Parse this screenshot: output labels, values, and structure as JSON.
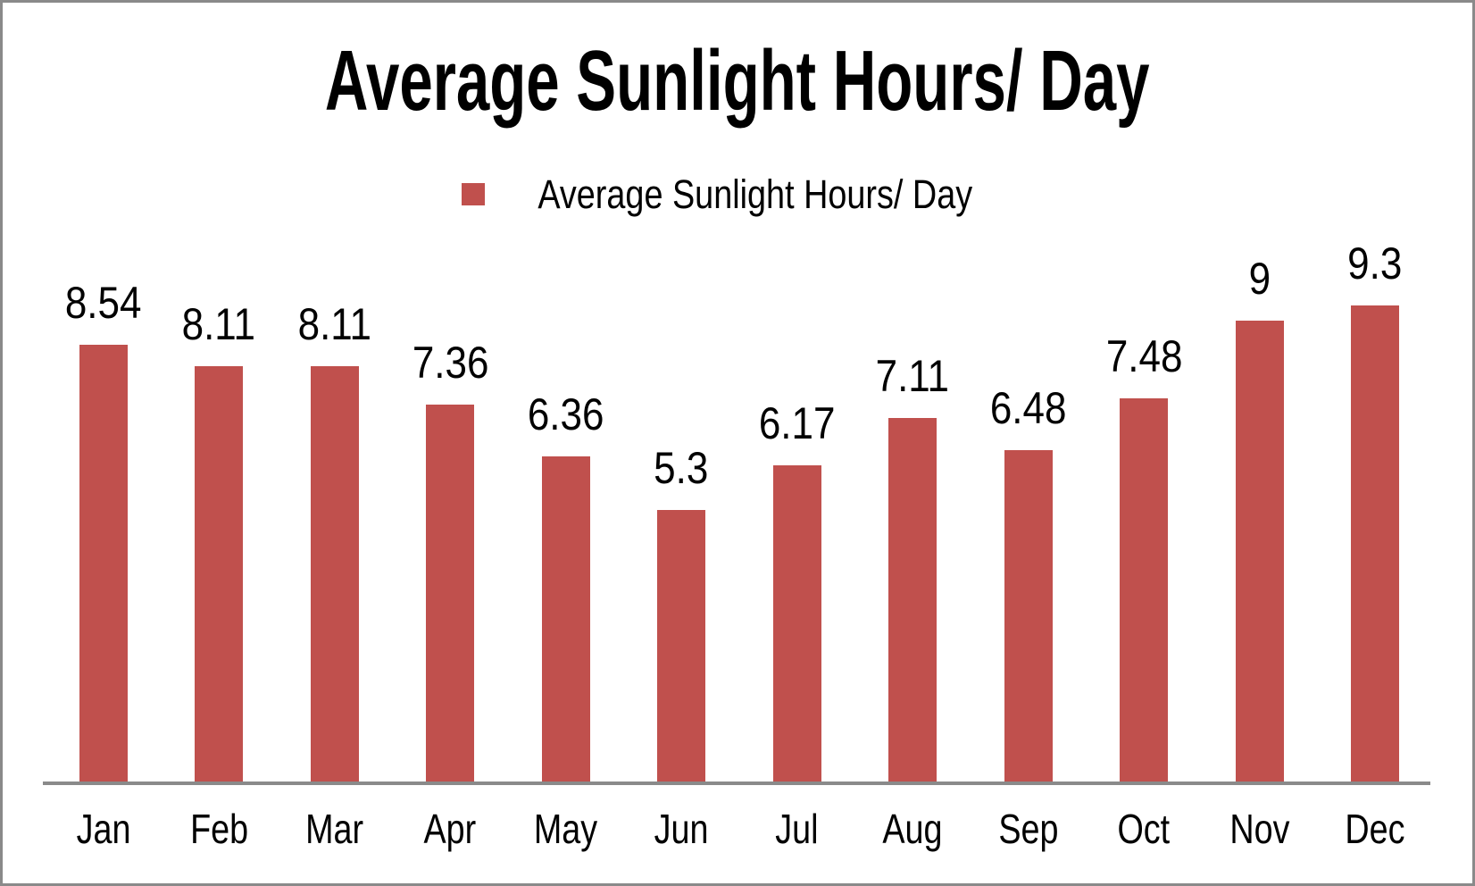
{
  "window": {
    "background": "#ffffff",
    "frame_border_color": "#8a8a8a"
  },
  "title": "Average Sunlight Hours/ Day",
  "legend": {
    "label": "Average Sunlight Hours/ Day",
    "swatch_icon": "red-square-icon"
  },
  "chart_data": {
    "type": "bar",
    "title": "Average Sunlight Hours/ Day",
    "categories": [
      "Jan",
      "Feb",
      "Mar",
      "Apr",
      "May",
      "Jun",
      "Jul",
      "Aug",
      "Sep",
      "Oct",
      "Nov",
      "Dec"
    ],
    "values": [
      8.54,
      8.11,
      8.11,
      7.36,
      6.36,
      5.3,
      6.17,
      7.11,
      6.48,
      7.48,
      9,
      9.3
    ],
    "series": [
      {
        "name": "Average Sunlight Hours/ Day",
        "values": [
          8.54,
          8.11,
          8.11,
          7.36,
          6.36,
          5.3,
          6.17,
          7.11,
          6.48,
          7.48,
          9,
          9.3
        ]
      }
    ],
    "xlabel": "",
    "ylabel": "",
    "ylim": [
      0,
      9.3
    ],
    "grid": false,
    "y_axis_visible": false,
    "data_labels": true,
    "legend_position": "top-center",
    "bar_color": "#C0504D",
    "axis_line_color": "#8a8a8a",
    "text_color": "#000000"
  }
}
